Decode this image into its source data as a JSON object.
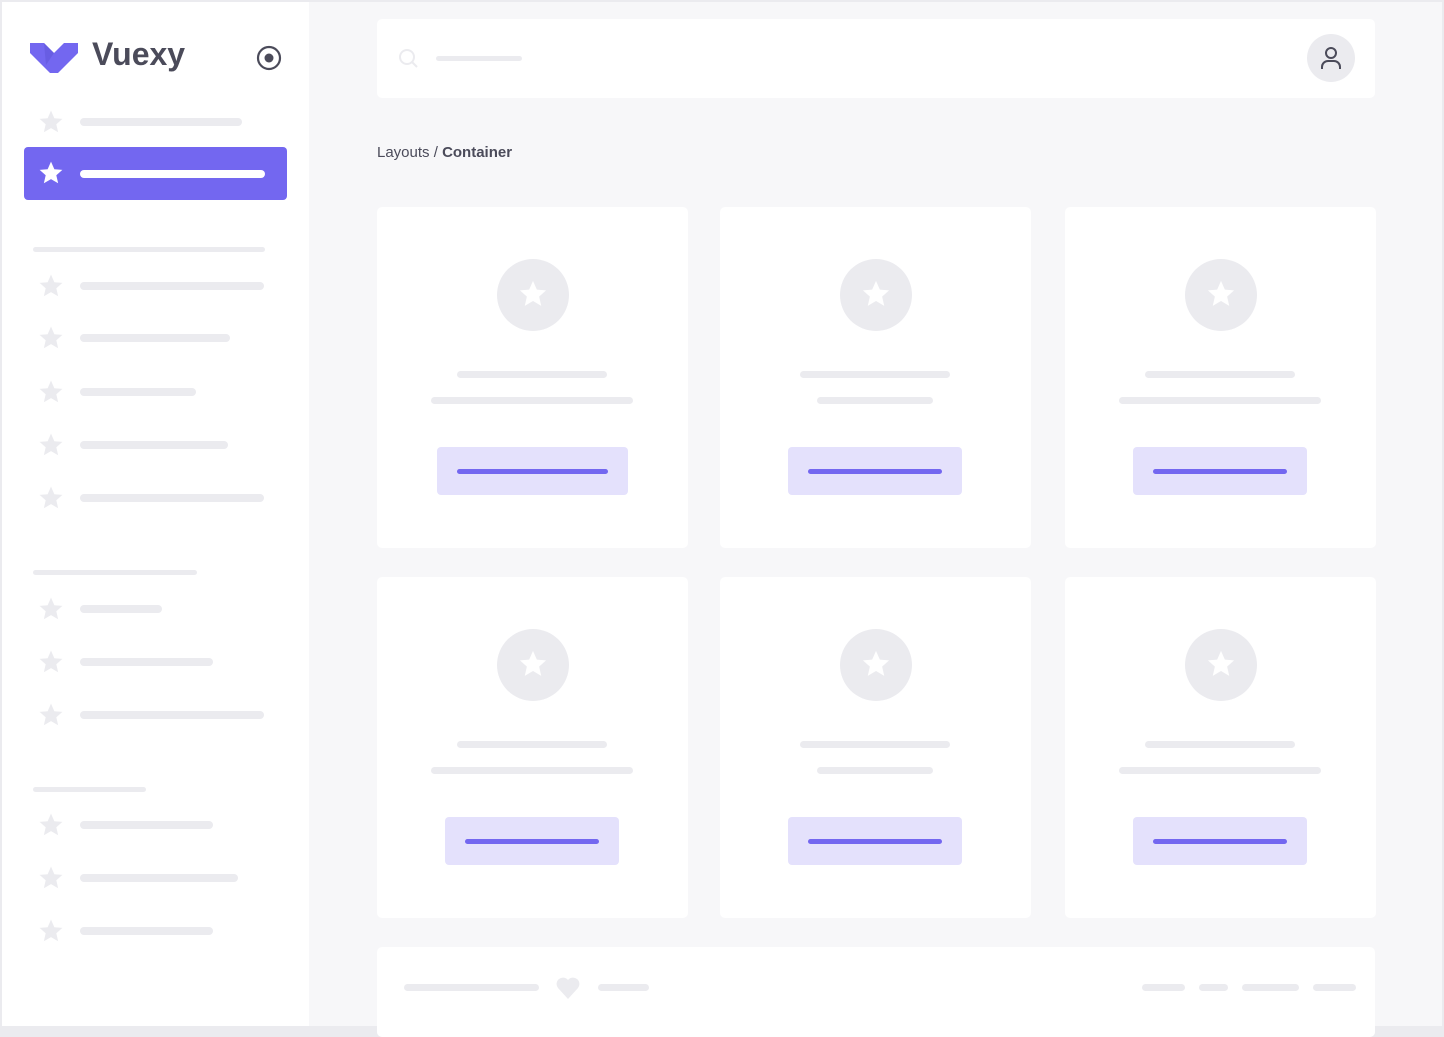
{
  "brand": {
    "name": "Vuexy",
    "color": "#7367f0"
  },
  "breadcrumb": {
    "parent": "Layouts",
    "separator": "/",
    "current": "Container"
  },
  "colors": {
    "accent": "#7367f0",
    "accent_light": "#e4e1fc",
    "placeholder": "#ebebef",
    "text": "#4b4b5a"
  },
  "icons": {
    "logo": "vuexy-logo",
    "toggle": "radio-circle-icon",
    "search": "search-icon",
    "user": "user-icon",
    "nav": "star-icon",
    "footer": "heart-icon"
  }
}
